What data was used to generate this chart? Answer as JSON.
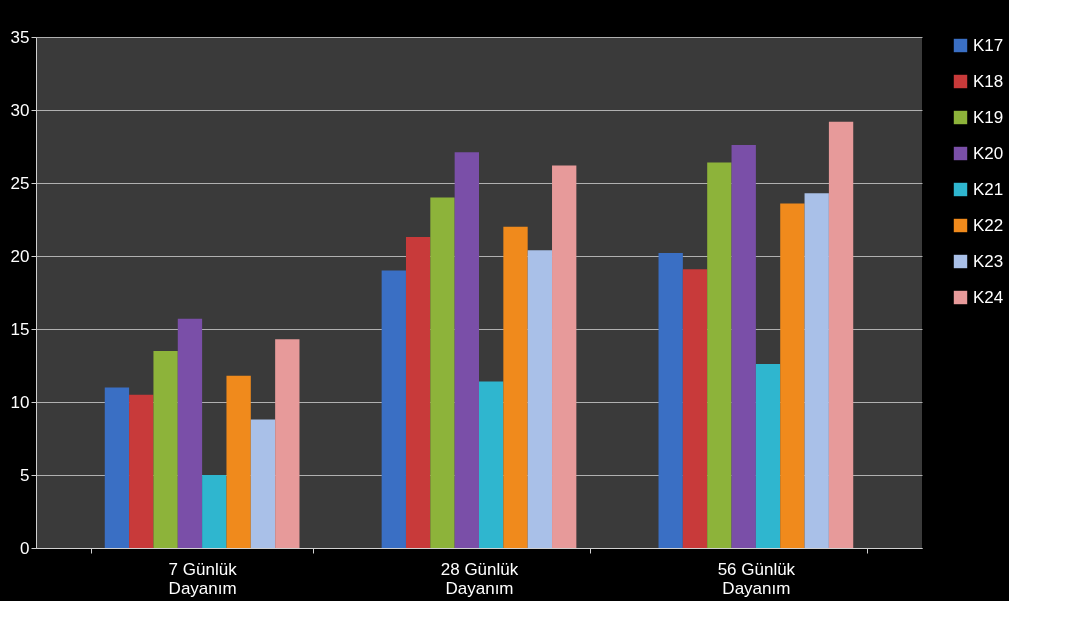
{
  "chart_data": {
    "type": "bar",
    "categories": [
      "7 Günlük\nDayanım",
      "28 Günlük\nDayanım",
      "56 Günlük\nDayanım"
    ],
    "series": [
      {
        "name": "K17",
        "color": "#3a6fc4",
        "values": [
          11,
          19,
          20.2
        ]
      },
      {
        "name": "K18",
        "color": "#c83a3a",
        "values": [
          10.5,
          21.3,
          19.1
        ]
      },
      {
        "name": "K19",
        "color": "#8db33a",
        "values": [
          13.5,
          24,
          26.4
        ]
      },
      {
        "name": "K20",
        "color": "#7a4fa8",
        "values": [
          15.7,
          27.1,
          27.6
        ]
      },
      {
        "name": "K21",
        "color": "#2fb6cf",
        "values": [
          5,
          11.4,
          12.6
        ]
      },
      {
        "name": "K22",
        "color": "#f08a1c",
        "values": [
          11.8,
          22,
          23.6
        ]
      },
      {
        "name": "K23",
        "color": "#a9c0e8",
        "values": [
          8.8,
          20.4,
          24.3
        ]
      },
      {
        "name": "K24",
        "color": "#e79a9a",
        "values": [
          14.3,
          26.2,
          29.2
        ]
      }
    ],
    "ylim": [
      0,
      35
    ],
    "yticks": [
      0,
      5,
      10,
      15,
      20,
      25,
      30,
      35
    ],
    "grid": "y",
    "legend": "right"
  }
}
